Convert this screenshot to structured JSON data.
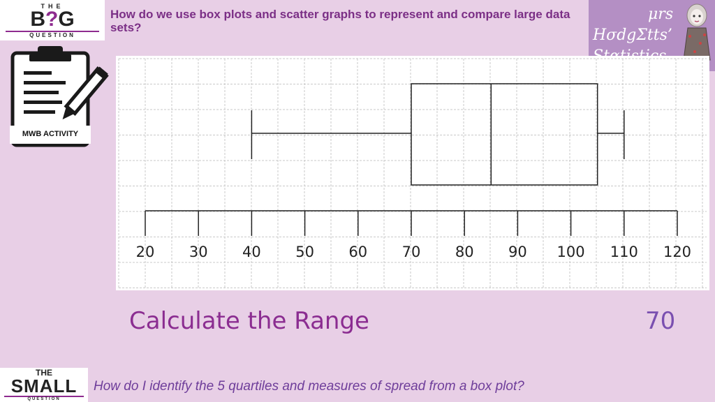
{
  "big_question_logo": {
    "the": "THE",
    "big_b": "B",
    "big_q": "?",
    "big_g": "G",
    "sub": "QUESTION"
  },
  "big_question": "How do we use box plots and scatter graphs to represent and compare large data sets?",
  "brand": {
    "line1": "μrs",
    "line2": "HσdgΣtts’",
    "line3": "Stαtistics"
  },
  "activity_badge": "MWB ACTIVITY",
  "chart_data": {
    "type": "box",
    "axis_ticks": [
      20,
      30,
      40,
      50,
      60,
      70,
      80,
      90,
      100,
      110,
      120
    ],
    "xlim": [
      20,
      120
    ],
    "box": {
      "min": 40,
      "q1": 70,
      "median": 85,
      "q3": 105,
      "max": 110
    },
    "grid": true
  },
  "prompt": "Calculate the Range",
  "answer": "70",
  "small_question_logo": {
    "the": "THE",
    "small": "SMALL",
    "sub": "QUESTION"
  },
  "small_question": "How do I identify the 5 quartiles and measures of spread  from a box plot?",
  "colors": {
    "background": "#e8cfe6",
    "heading": "#8b2d91",
    "answer": "#7a4fb0",
    "brand_box": "#b48fc4",
    "accent": "#8e2b8f"
  }
}
